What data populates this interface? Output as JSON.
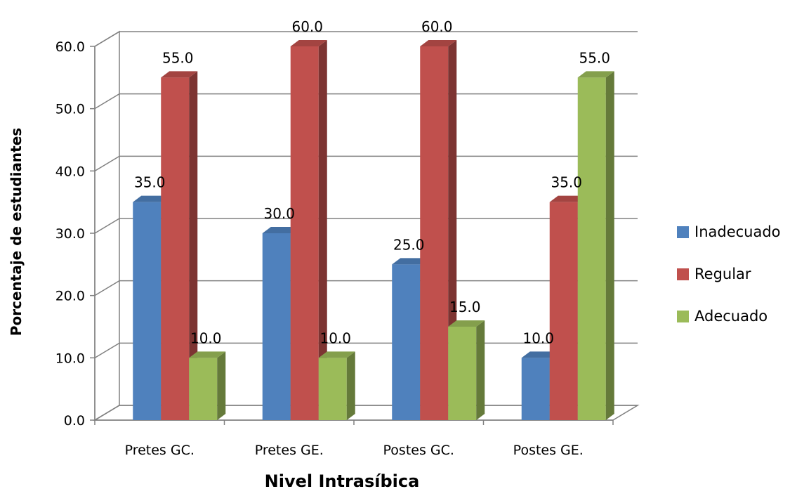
{
  "chart_data": {
    "type": "bar",
    "categories": [
      "Pretes GC.",
      "Pretes GE.",
      "Postes GC.",
      "Postes GE."
    ],
    "series": [
      {
        "name": "Inadecuado",
        "values": [
          35.0,
          30.0,
          25.0,
          10.0
        ],
        "color": "#4F81BD"
      },
      {
        "name": "Regular",
        "values": [
          55.0,
          60.0,
          60.0,
          35.0
        ],
        "color": "#C0504D"
      },
      {
        "name": "Adecuado",
        "values": [
          10.0,
          10.0,
          15.0,
          55.0
        ],
        "color": "#9BBB59"
      }
    ],
    "xlabel": "Nivel Intrasíbica",
    "ylabel": "Porcentaje de estudiantes",
    "ylim": [
      0,
      60
    ],
    "yticks": [
      "0.0",
      "10.0",
      "20.0",
      "30.0",
      "40.0",
      "50.0",
      "60.0"
    ],
    "data_labels": [
      [
        "35.0",
        "30.0",
        "25.0",
        "10.0"
      ],
      [
        "55.0",
        "60.0",
        "60.0",
        "35.0"
      ],
      [
        "10.0",
        "10.0",
        "15.0",
        "55.0"
      ]
    ],
    "grid": true,
    "legend_position": "right",
    "style": "3d"
  }
}
